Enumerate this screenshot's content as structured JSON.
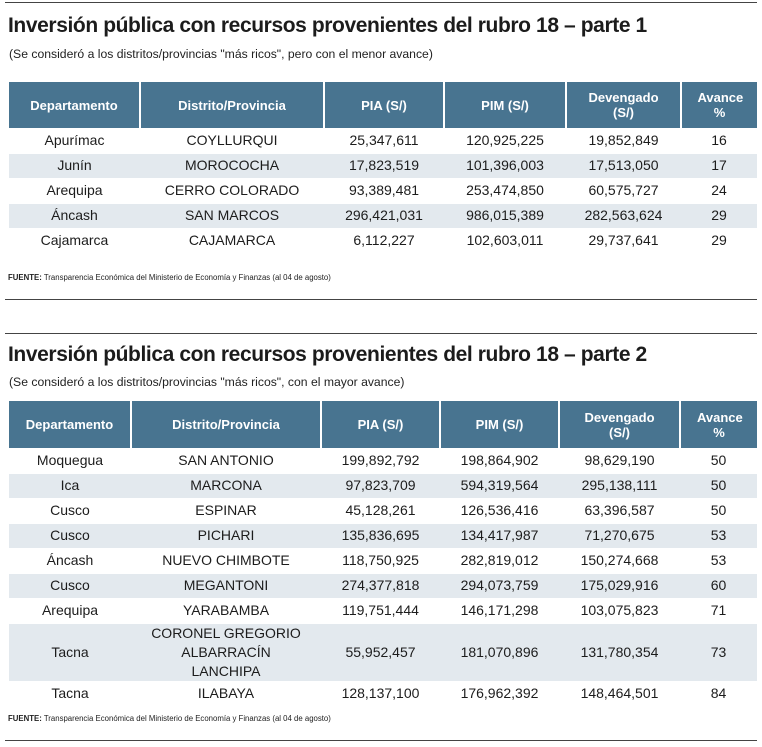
{
  "tables": [
    {
      "title": "Inversión pública con recursos provenientes del rubro 18 – parte 1",
      "subtitle": "(Se consideró a los distritos/provincias \"más ricos\", pero con el menor avance)",
      "headers": [
        "Departamento",
        "Distrito/Provincia",
        "PIA (S/)",
        "PIM (S/)",
        "Devengado (S/)",
        "Avance %"
      ],
      "rows": [
        [
          "Apurímac",
          "COYLLURQUI",
          "25,347,611",
          "120,925,225",
          "19,852,849",
          "16"
        ],
        [
          "Junín",
          "MOROCOCHA",
          "17,823,519",
          "101,396,003",
          "17,513,050",
          "17"
        ],
        [
          "Arequipa",
          "CERRO COLORADO",
          "93,389,481",
          "253,474,850",
          "60,575,727",
          "24"
        ],
        [
          "Áncash",
          "SAN MARCOS",
          "296,421,031",
          "986,015,389",
          "282,563,624",
          "29"
        ],
        [
          "Cajamarca",
          "CAJAMARCA",
          "6,112,227",
          "102,603,011",
          "29,737,641",
          "29"
        ]
      ],
      "source_label": "FUENTE:",
      "source_text": "Transparencia Económica del Ministerio de Economía y Finanzas (al 04 de agosto)"
    },
    {
      "title": "Inversión pública con recursos provenientes del rubro 18 – parte 2",
      "subtitle": "(Se consideró a los distritos/provincias \"más ricos\", con el mayor avance)",
      "headers": [
        "Departamento",
        "Distrito/Provincia",
        "PIA (S/)",
        "PIM (S/)",
        "Devengado (S/)",
        "Avance %"
      ],
      "rows": [
        [
          "Moquegua",
          "SAN ANTONIO",
          "199,892,792",
          "198,864,902",
          "98,629,190",
          "50"
        ],
        [
          "Ica",
          "MARCONA",
          "97,823,709",
          "594,319,564",
          "295,138,111",
          "50"
        ],
        [
          "Cusco",
          "ESPINAR",
          "45,128,261",
          "126,536,416",
          "63,396,587",
          "50"
        ],
        [
          "Cusco",
          "PICHARI",
          "135,836,695",
          "134,417,987",
          "71,270,675",
          "53"
        ],
        [
          "Áncash",
          "NUEVO CHIMBOTE",
          "118,750,925",
          "282,819,012",
          "150,274,668",
          "53"
        ],
        [
          "Cusco",
          "MEGANTONI",
          "274,377,818",
          "294,073,759",
          "175,029,916",
          "60"
        ],
        [
          "Arequipa",
          "YARABAMBA",
          "119,751,444",
          "146,171,298",
          "103,075,823",
          "71"
        ],
        [
          "Tacna",
          "CORONEL GREGORIO ALBARRACÍN LANCHIPA",
          "55,952,457",
          "181,070,896",
          "131,780,354",
          "73"
        ],
        [
          "Tacna",
          "ILABAYA",
          "128,137,100",
          "176,962,392",
          "148,464,501",
          "84"
        ]
      ],
      "source_label": "FUENTE:",
      "source_text": "Transparencia Económica del Ministerio de Economía y Finanzas (al 04 de agosto)"
    }
  ]
}
